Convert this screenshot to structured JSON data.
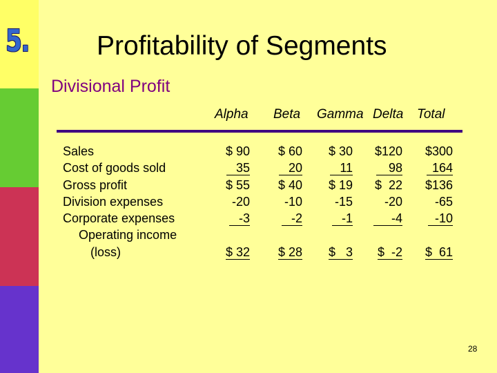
{
  "slide": {
    "number": "5.",
    "title": "Profitability of Segments",
    "subtitle": "Divisional Profit",
    "page": "28"
  },
  "colors": {
    "background": "#ffff99",
    "bar_yellow": "#ffff66",
    "bar_green": "#66cc33",
    "bar_red": "#cc3355",
    "bar_violet": "#6633cc",
    "subtitle": "#800080",
    "divider": "#400080",
    "number": "#3366cc"
  },
  "table": {
    "columns": [
      "Alpha",
      "Beta",
      "Gamma",
      "Delta",
      "Total"
    ],
    "rows": [
      "Sales",
      "Cost of goods sold",
      "Gross profit",
      "Division expenses",
      "Corporate expenses",
      "Operating income",
      "(loss)"
    ],
    "values": {
      "alpha": [
        "$ 90",
        "35",
        "$ 55",
        "-20",
        "-3",
        "$ 32"
      ],
      "beta": [
        "$ 60",
        "20",
        "$ 40",
        "-10",
        "-2",
        "$ 28"
      ],
      "gamma": [
        "$ 30",
        "11",
        "$ 19",
        "-15",
        "-1",
        "$   3"
      ],
      "delta": [
        "$120",
        "98",
        "$  22",
        "-20",
        "-4",
        "$  -2"
      ],
      "total": [
        "$300",
        "164",
        "$136",
        "-65",
        "-10",
        "$  61"
      ]
    }
  }
}
